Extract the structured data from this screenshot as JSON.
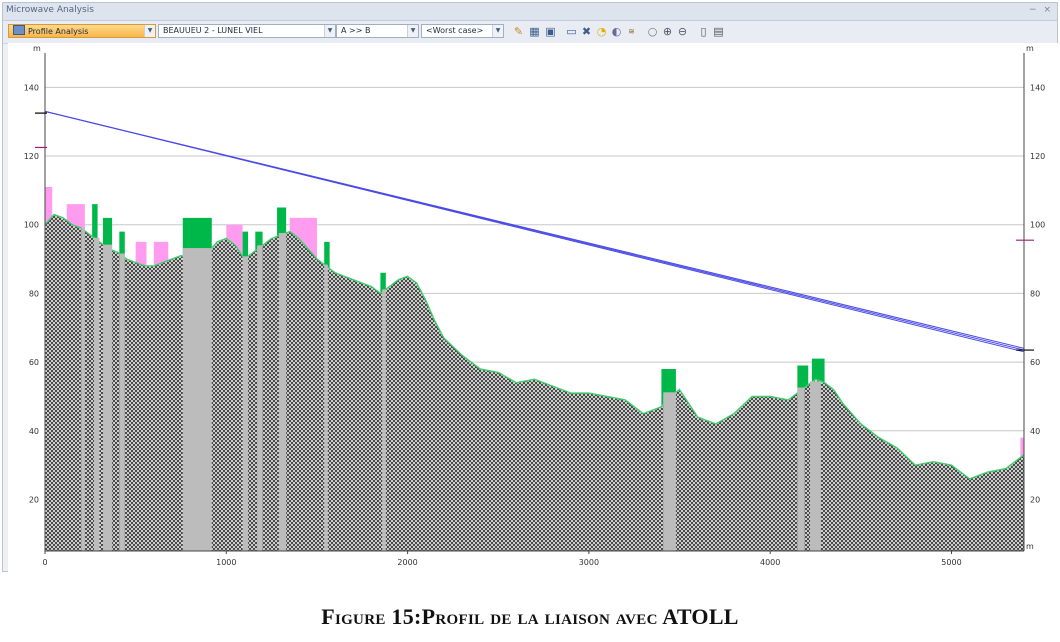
{
  "window": {
    "title": "Microwave Analysis",
    "controls": "− ×"
  },
  "toolbar": {
    "view_combo": "Profile Analysis",
    "link_combo": "BEAUUEU 2 - LUNEL VIEL",
    "direction_combo": "A >> B",
    "case_combo": "<Worst case>",
    "icons": [
      "properties-icon",
      "grid-icon",
      "fit-icon",
      "monitor-icon",
      "tools-icon",
      "comment-icon",
      "speaker-icon",
      "signal-icon",
      "pan-icon",
      "zoom-in-icon",
      "zoom-out-icon",
      "copy-icon",
      "print-icon"
    ]
  },
  "chart_data": {
    "type": "area",
    "xlabel": "m",
    "ylabel": "m",
    "xlim": [
      0,
      5400
    ],
    "ylim": [
      5,
      150
    ],
    "x_ticks": [
      0,
      1000,
      2000,
      3000,
      4000,
      5000
    ],
    "y_ticks": [
      20,
      40,
      60,
      80,
      100,
      120,
      140
    ],
    "grid": "horizontal",
    "colors": {
      "terrain": "#4a4a4a",
      "clutter_green": "#00b84a",
      "clutter_pink": "#ff9cf0",
      "obstacle_gray": "#bcbcbc",
      "beam": "#4a4ae6",
      "grid": "#c8c8c8"
    },
    "terrain_profile": {
      "x": [
        0,
        50,
        100,
        150,
        200,
        250,
        300,
        350,
        400,
        450,
        500,
        550,
        600,
        650,
        700,
        750,
        800,
        850,
        900,
        950,
        1000,
        1050,
        1100,
        1150,
        1200,
        1250,
        1300,
        1350,
        1400,
        1450,
        1500,
        1550,
        1600,
        1650,
        1700,
        1750,
        1800,
        1850,
        1900,
        1950,
        2000,
        2050,
        2100,
        2150,
        2200,
        2300,
        2400,
        2500,
        2600,
        2700,
        2800,
        2900,
        3000,
        3100,
        3200,
        3300,
        3400,
        3450,
        3500,
        3550,
        3600,
        3650,
        3700,
        3800,
        3900,
        4000,
        4100,
        4150,
        4200,
        4250,
        4300,
        4350,
        4400,
        4500,
        4600,
        4700,
        4800,
        4900,
        5000,
        5050,
        5100,
        5200,
        5300,
        5350,
        5400
      ],
      "y": [
        100,
        103,
        102,
        100,
        99,
        97,
        95,
        93,
        92,
        90,
        89,
        88,
        88,
        89,
        90,
        91,
        90,
        91,
        92,
        95,
        96,
        94,
        90,
        92,
        94,
        96,
        97,
        98,
        96,
        93,
        90,
        88,
        86,
        85,
        84,
        83,
        82,
        80,
        82,
        84,
        85,
        83,
        78,
        72,
        67,
        62,
        58,
        57,
        54,
        55,
        53,
        51,
        51,
        50,
        49,
        45,
        47,
        50,
        52,
        48,
        44,
        43,
        42,
        45,
        50,
        50,
        49,
        51,
        53,
        55,
        54,
        52,
        48,
        42,
        38,
        35,
        30,
        31,
        30,
        28,
        26,
        28,
        29,
        31,
        33
      ]
    },
    "beam_lines": [
      {
        "x": [
          0,
          5400
        ],
        "y": [
          133,
          63
        ]
      },
      {
        "x": [
          0,
          5400
        ],
        "y": [
          133,
          63.5
        ]
      },
      {
        "x": [
          0,
          5400
        ],
        "y": [
          133,
          64
        ]
      }
    ],
    "clutter": [
      {
        "x0": 0,
        "x1": 40,
        "top": 111,
        "color": "pink"
      },
      {
        "x0": 120,
        "x1": 220,
        "top": 106,
        "color": "pink"
      },
      {
        "x0": 260,
        "x1": 290,
        "top": 106,
        "color": "green"
      },
      {
        "x0": 320,
        "x1": 370,
        "top": 102,
        "color": "green"
      },
      {
        "x0": 410,
        "x1": 440,
        "top": 98,
        "color": "green"
      },
      {
        "x0": 500,
        "x1": 560,
        "top": 95,
        "color": "pink"
      },
      {
        "x0": 600,
        "x1": 680,
        "top": 95,
        "color": "pink"
      },
      {
        "x0": 760,
        "x1": 920,
        "top": 102,
        "color": "green"
      },
      {
        "x0": 1000,
        "x1": 1090,
        "top": 100,
        "color": "pink"
      },
      {
        "x0": 1090,
        "x1": 1120,
        "top": 98,
        "color": "green"
      },
      {
        "x0": 1160,
        "x1": 1200,
        "top": 98,
        "color": "green"
      },
      {
        "x0": 1280,
        "x1": 1330,
        "top": 105,
        "color": "green"
      },
      {
        "x0": 1350,
        "x1": 1500,
        "top": 102,
        "color": "pink"
      },
      {
        "x0": 1540,
        "x1": 1570,
        "top": 95,
        "color": "green"
      },
      {
        "x0": 1850,
        "x1": 1880,
        "top": 86,
        "color": "green"
      },
      {
        "x0": 3400,
        "x1": 3480,
        "top": 58,
        "color": "green"
      },
      {
        "x0": 4150,
        "x1": 4210,
        "top": 59,
        "color": "green"
      },
      {
        "x0": 4230,
        "x1": 4300,
        "top": 61,
        "color": "green"
      },
      {
        "x0": 5380,
        "x1": 5400,
        "top": 38,
        "color": "pink"
      }
    ],
    "obstacle_bands": [
      {
        "x0": 200,
        "x1": 220
      },
      {
        "x0": 270,
        "x1": 300
      },
      {
        "x0": 320,
        "x1": 370
      },
      {
        "x0": 410,
        "x1": 440
      },
      {
        "x0": 760,
        "x1": 920
      },
      {
        "x0": 1090,
        "x1": 1120
      },
      {
        "x0": 1170,
        "x1": 1200
      },
      {
        "x0": 1290,
        "x1": 1330
      },
      {
        "x0": 1540,
        "x1": 1560
      },
      {
        "x0": 1860,
        "x1": 1880
      },
      {
        "x0": 3410,
        "x1": 3480
      },
      {
        "x0": 4150,
        "x1": 4190
      },
      {
        "x0": 4220,
        "x1": 4280
      }
    ],
    "markers": [
      {
        "side": "left",
        "y": 132.5,
        "color": "#000000"
      },
      {
        "side": "left",
        "y": 122.5,
        "color": "#9b1f7a"
      },
      {
        "side": "right",
        "y": 95.5,
        "color": "#9b1f7a"
      },
      {
        "side": "right",
        "y": 63.5,
        "color": "#000000"
      }
    ]
  },
  "caption": "Figure 15:Profil de la liaison avec ATOLL"
}
